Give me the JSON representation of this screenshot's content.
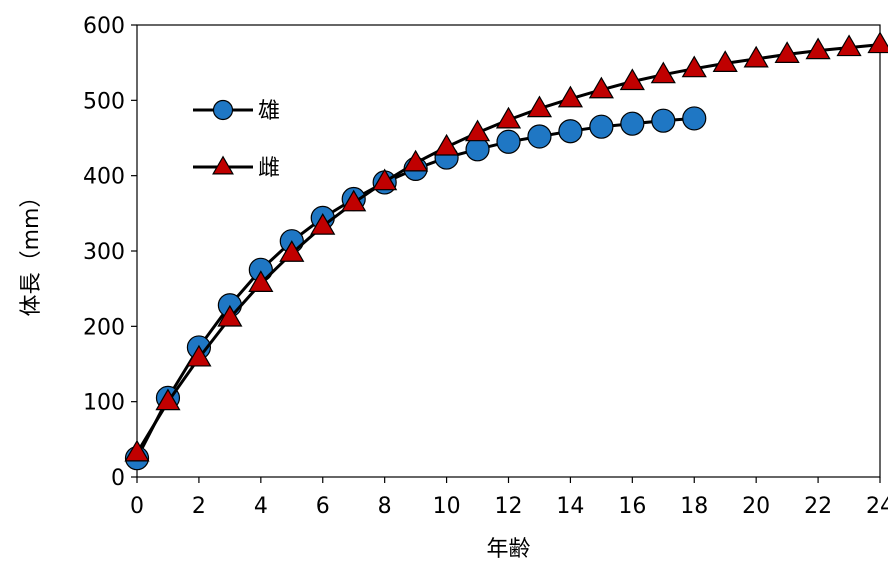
{
  "chart_data": {
    "type": "line",
    "xlabel": "年齢",
    "ylabel": "体長（mm）",
    "xlim": [
      0,
      24
    ],
    "ylim": [
      0,
      600
    ],
    "xticks": [
      0,
      2,
      4,
      6,
      8,
      10,
      12,
      14,
      16,
      18,
      20,
      22,
      24
    ],
    "yticks": [
      0,
      100,
      200,
      300,
      400,
      500,
      600
    ],
    "grid": false,
    "legend": "top-left",
    "series": [
      {
        "name": "雄",
        "marker": "circle",
        "color": "#1f77c4",
        "x": [
          0,
          1,
          2,
          3,
          4,
          5,
          6,
          7,
          8,
          9,
          10,
          11,
          12,
          13,
          14,
          15,
          16,
          17,
          18
        ],
        "y": [
          25,
          105,
          172,
          228,
          275,
          313,
          344,
          369,
          391,
          409,
          424,
          435,
          445,
          452,
          459,
          465,
          469,
          473,
          476
        ]
      },
      {
        "name": "雌",
        "marker": "triangle",
        "color": "#c00000",
        "x": [
          0,
          1,
          2,
          3,
          4,
          5,
          6,
          7,
          8,
          9,
          10,
          11,
          12,
          13,
          14,
          15,
          16,
          17,
          18,
          19,
          20,
          21,
          22,
          23,
          24
        ],
        "y": [
          32,
          100,
          158,
          211,
          257,
          297,
          333,
          364,
          392,
          417,
          438,
          457,
          474,
          489,
          502,
          514,
          525,
          534,
          542,
          549,
          555,
          561,
          566,
          570,
          574
        ]
      }
    ]
  }
}
